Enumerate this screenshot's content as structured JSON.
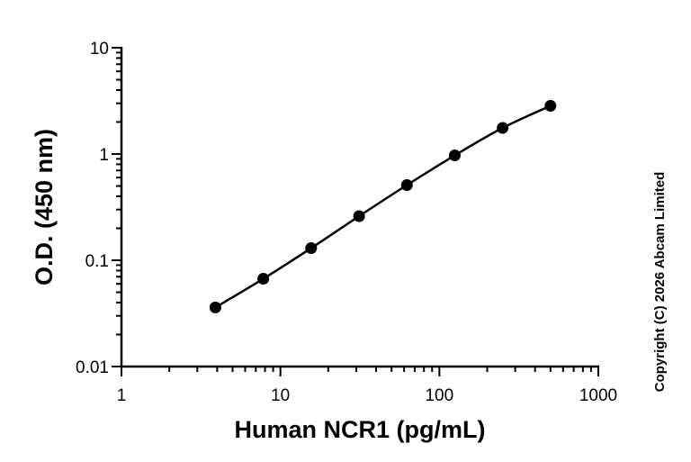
{
  "chart_data": {
    "type": "scatter",
    "xscale": "log",
    "yscale": "log",
    "xlim": [
      1,
      1000
    ],
    "ylim": [
      0.01,
      10
    ],
    "xticks": [
      1,
      10,
      100,
      1000
    ],
    "xtick_labels": [
      "1",
      "10",
      "100",
      "1000"
    ],
    "yticks": [
      0.01,
      0.1,
      1,
      10
    ],
    "ytick_labels": [
      "0.01",
      "0.1",
      "1",
      "10"
    ],
    "xlabel": "Human NCR1 (pg/mL)",
    "ylabel": "O.D. (450 nm)",
    "grid": false,
    "series": [
      {
        "x": [
          3.9,
          7.8,
          15.6,
          31.25,
          62.5,
          125,
          250,
          500
        ],
        "y": [
          0.036,
          0.067,
          0.13,
          0.26,
          0.51,
          0.97,
          1.76,
          2.84
        ],
        "color": "#000000",
        "fit_line": true
      }
    ]
  },
  "copyright": "Copyright (C) 2026 Abcam Limited"
}
